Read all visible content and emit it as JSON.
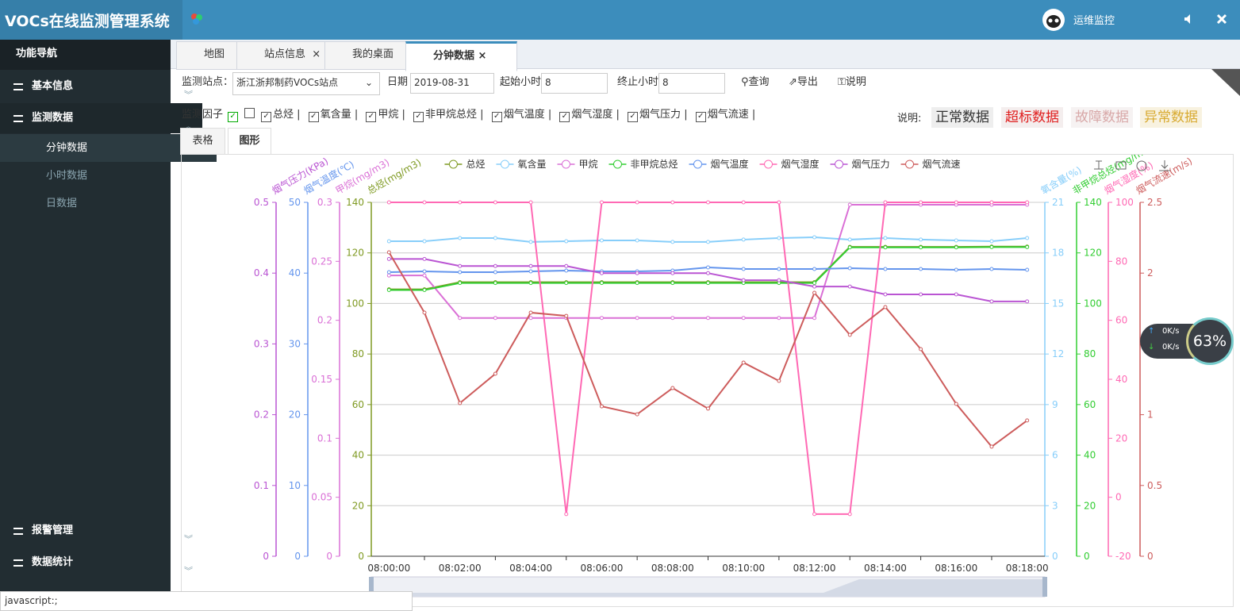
{
  "header": {
    "title": "VOCs在线监测管理系统",
    "user": "运维监控"
  },
  "sidebar": {
    "title": "功能导航",
    "menu": [
      {
        "label": "基本信息"
      },
      {
        "label": "监测数据",
        "children": [
          "分钟数据",
          "小时数据",
          "日数据"
        ]
      },
      {
        "label": "报警管理"
      },
      {
        "label": "数据统计"
      }
    ]
  },
  "tabs": [
    "地图",
    "站点信息",
    "我的桌面",
    "分钟数据"
  ],
  "toolbar": {
    "station_label": "监测站点：",
    "station": "浙江浙邦制药VOCs站点",
    "date_label": "日期",
    "date": "2019-08-31",
    "start_label": "起始小时",
    "start_hour": 8,
    "end_label": "终止小时",
    "end_hour": 8,
    "buttons": [
      "查询",
      "导出",
      "说明"
    ]
  },
  "factors": {
    "label": "监测因子",
    "items": [
      "总烃",
      "氧含量",
      "甲烷",
      "非甲烷总烃",
      "烟气温度",
      "烟气湿度",
      "烟气压力",
      "烟气流速"
    ]
  },
  "legend_note": {
    "label": "说明:",
    "items": [
      "正常数据",
      "超标数据",
      "故障数据",
      "异常数据"
    ]
  },
  "view_tabs": [
    "表格",
    "图形"
  ],
  "net_widget": {
    "up": "0K/s",
    "down": "0K/s",
    "cpu": "63%"
  },
  "status_bar": "javascript:;",
  "chart_data": {
    "type": "line",
    "categories": [
      "08:00:00",
      null,
      "08:02:00",
      null,
      "08:04:00",
      null,
      "08:06:00",
      null,
      "08:08:00",
      null,
      "08:10:00",
      null,
      "08:12:00",
      null,
      "08:14:00",
      null,
      "08:16:00",
      null,
      "08:18:00"
    ],
    "y_axes": [
      {
        "name": "烟气压力(KPa)",
        "side": "left",
        "color": "#ba55d3",
        "lim": [
          0,
          0.5
        ],
        "ticks": [
          0,
          0.1,
          0.2,
          0.3,
          0.4,
          0.5
        ]
      },
      {
        "name": "烟气温度(℃)",
        "side": "left",
        "color": "#6495ed",
        "lim": [
          0,
          50
        ],
        "ticks": [
          0,
          10,
          20,
          30,
          40,
          50
        ]
      },
      {
        "name": "甲烷(mg/m3)",
        "side": "left",
        "color": "#da70d6",
        "lim": [
          0,
          0.3
        ],
        "ticks": [
          0,
          0.05,
          0.1,
          0.15,
          0.2,
          0.25,
          0.3
        ]
      },
      {
        "name": "总烃(mg/m3)",
        "side": "left",
        "color": "#7f9a22",
        "lim": [
          0,
          140
        ],
        "ticks": [
          0,
          20,
          40,
          60,
          80,
          100,
          120,
          140
        ]
      },
      {
        "name": "氧含量(%)",
        "side": "right",
        "color": "#87cefa",
        "lim": [
          0,
          21
        ],
        "ticks": [
          0,
          3,
          6,
          9,
          12,
          15,
          18,
          21
        ]
      },
      {
        "name": "非甲烷总烃(mg/m3)",
        "side": "right",
        "color": "#32cd32",
        "lim": [
          0,
          140
        ],
        "ticks": [
          0,
          20,
          40,
          60,
          80,
          100,
          120,
          140
        ]
      },
      {
        "name": "烟气湿度(%)",
        "side": "right",
        "color": "#ff69b4",
        "lim": [
          -20,
          100
        ],
        "ticks": [
          -20,
          0,
          20,
          40,
          60,
          80,
          100
        ]
      },
      {
        "name": "烟气流速(m/s)",
        "side": "right",
        "color": "#cd5c5c",
        "lim": [
          0,
          2.5
        ],
        "ticks": [
          0,
          0.5,
          1,
          1.5,
          2,
          2.5
        ]
      }
    ],
    "series": [
      {
        "name": "总烃",
        "axis": 3,
        "color": "#7f9a22",
        "values": [
          105.6,
          105.6,
          108.4,
          108.4,
          108.4,
          108.4,
          108.4,
          108.4,
          108.4,
          108.4,
          108.4,
          108.4,
          108.4,
          122.4,
          122.4,
          122.4,
          122.4,
          122.5,
          122.5
        ]
      },
      {
        "name": "氧含量",
        "axis": 4,
        "color": "#87cefa",
        "values": [
          18.69,
          18.69,
          18.88,
          18.88,
          18.65,
          18.69,
          18.74,
          18.74,
          18.65,
          18.65,
          18.79,
          18.88,
          18.93,
          18.79,
          18.88,
          18.79,
          18.74,
          18.69,
          18.88
        ]
      },
      {
        "name": "甲烷",
        "axis": 2,
        "color": "#da70d6",
        "values": [
          0.238,
          0.238,
          0.202,
          0.202,
          0.202,
          0.202,
          0.202,
          0.202,
          0.202,
          0.202,
          0.202,
          0.202,
          0.202,
          0.298,
          0.298,
          0.298,
          0.298,
          0.298,
          0.298
        ]
      },
      {
        "name": "非甲烷总烃",
        "axis": 5,
        "color": "#32cd32",
        "values": [
          105.3,
          105.3,
          108.1,
          108.1,
          108.1,
          108.1,
          108.1,
          108.1,
          108.1,
          108.1,
          108.1,
          108.1,
          108.1,
          122.2,
          122.2,
          122.2,
          122.2,
          122.3,
          122.3
        ]
      },
      {
        "name": "烟气温度",
        "axis": 1,
        "color": "#6495ed",
        "values": [
          40.13,
          40.25,
          40.13,
          40.13,
          40.25,
          40.36,
          40.25,
          40.25,
          40.36,
          40.81,
          40.58,
          40.58,
          40.58,
          40.7,
          40.58,
          40.58,
          40.47,
          40.58,
          40.47
        ]
      },
      {
        "name": "烟气湿度",
        "axis": 6,
        "color": "#ff69b4",
        "values": [
          100,
          100,
          100,
          100,
          100,
          -5.7,
          100,
          100,
          100,
          100,
          100,
          100,
          -5.7,
          -5.7,
          100,
          100,
          100,
          100,
          100
        ]
      },
      {
        "name": "烟气压力",
        "axis": 0,
        "color": "#ba55d3",
        "values": [
          0.42,
          0.42,
          0.41,
          0.41,
          0.41,
          0.41,
          0.4,
          0.4,
          0.4,
          0.4,
          0.39,
          0.39,
          0.381,
          0.381,
          0.37,
          0.37,
          0.37,
          0.36,
          0.36
        ]
      },
      {
        "name": "烟气流速",
        "axis": 7,
        "color": "#cd5c5c",
        "values": [
          2.147,
          1.721,
          1.082,
          1.289,
          1.721,
          1.698,
          1.059,
          1.003,
          1.188,
          1.043,
          1.368,
          1.239,
          1.861,
          1.564,
          1.76,
          1.463,
          1.076,
          0.774,
          0.959
        ]
      }
    ]
  }
}
